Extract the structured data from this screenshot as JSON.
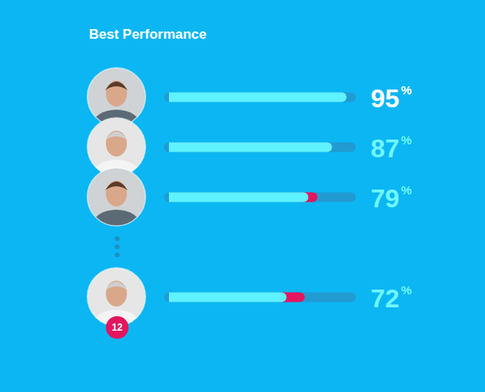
{
  "chart_data": {
    "type": "bar",
    "title": "Best Performance",
    "orientation": "horizontal",
    "categories": [
      null,
      null,
      null,
      null
    ],
    "values": [
      95,
      87,
      79,
      72
    ],
    "value_labels": [
      "95%",
      "87%",
      "79%",
      "72%"
    ],
    "drops": [
      0,
      0,
      5,
      10
    ],
    "ranks": [
      null,
      null,
      null,
      12
    ],
    "color": "#5ff2ff",
    "colors": [
      "#ffffff",
      "#6ff6ff",
      "#6ff6ff",
      "#6ff6ff"
    ],
    "xlim": [
      0,
      100
    ],
    "data_labels": true,
    "tick_labels": false
  }
}
